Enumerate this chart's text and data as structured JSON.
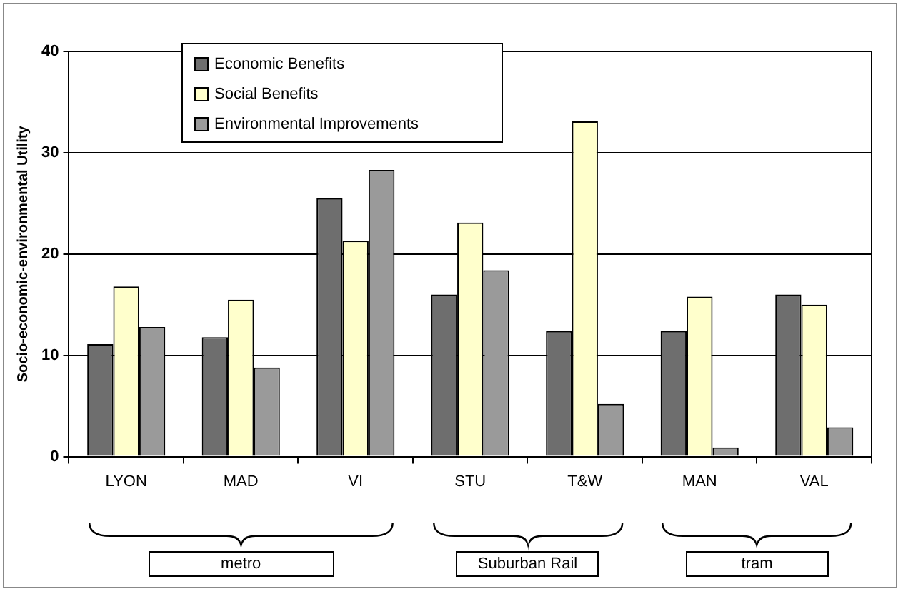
{
  "chart_data": {
    "type": "bar",
    "ylabel": "Socio-economic-environmental Utility",
    "categories": [
      "LYON",
      "MAD",
      "VI",
      "STU",
      "T&W",
      "MAN",
      "VAL"
    ],
    "series": [
      {
        "name": "Economic Benefits",
        "color": "#6e6e6e",
        "values": [
          11.1,
          11.8,
          25.5,
          16.0,
          12.4,
          12.4,
          16.0
        ]
      },
      {
        "name": "Social Benefits",
        "color": "#ffffcc",
        "values": [
          16.8,
          15.5,
          21.3,
          23.1,
          33.1,
          15.8,
          15.0
        ]
      },
      {
        "name": "Environmental Improvements",
        "color": "#9a9a9a",
        "values": [
          12.8,
          8.8,
          28.3,
          18.4,
          5.2,
          0.9,
          2.9
        ]
      }
    ],
    "ylim": [
      0,
      40
    ],
    "yticks": [
      0,
      10,
      20,
      30,
      40
    ],
    "grid": "y",
    "legend": "top left",
    "annotations": [
      "metro",
      "Suburban Rail",
      "tram"
    ]
  }
}
